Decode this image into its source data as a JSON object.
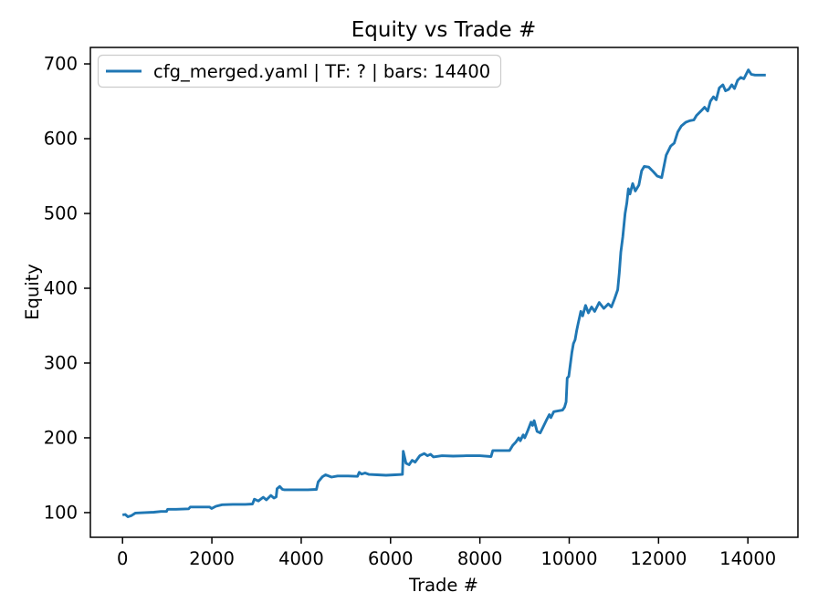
{
  "chart_data": {
    "type": "line",
    "title": "Equity vs Trade #",
    "xlabel": "Trade #",
    "ylabel": "Equity",
    "grid": false,
    "legend_position": "upper-left",
    "legend": [
      {
        "label": "cfg_merged.yaml | TF: ? | bars: 14400",
        "color": "#1f77b4"
      }
    ],
    "line_color": "#1f77b4",
    "axis_color": "#000000",
    "legend_border_color": "#cccccc",
    "background_color": "#ffffff",
    "xlim": [
      -720,
      15120
    ],
    "ylim": [
      67,
      722
    ],
    "xticks": [
      0,
      2000,
      4000,
      6000,
      8000,
      10000,
      12000,
      14000
    ],
    "yticks": [
      100,
      200,
      300,
      400,
      500,
      600,
      700
    ],
    "series": [
      {
        "name": "cfg_merged.yaml | TF: ? | bars: 14400",
        "x": [
          0,
          60,
          120,
          200,
          290,
          500,
          700,
          860,
          985,
          1010,
          1200,
          1480,
          1515,
          1800,
          1950,
          1995,
          2090,
          2230,
          2500,
          2750,
          2910,
          2950,
          3040,
          3150,
          3220,
          3320,
          3390,
          3440,
          3460,
          3520,
          3580,
          3625,
          3900,
          4150,
          4340,
          4380,
          4475,
          4545,
          4680,
          4815,
          5050,
          5260,
          5300,
          5350,
          5430,
          5520,
          5700,
          5900,
          6100,
          6265,
          6285,
          6345,
          6415,
          6485,
          6550,
          6655,
          6755,
          6825,
          6895,
          6960,
          7150,
          7400,
          7700,
          8000,
          8250,
          8290,
          8500,
          8665,
          8735,
          8800,
          8870,
          8905,
          8970,
          9005,
          9075,
          9145,
          9180,
          9215,
          9280,
          9350,
          9415,
          9485,
          9555,
          9590,
          9655,
          9750,
          9850,
          9895,
          9930,
          9955,
          9990,
          10025,
          10060,
          10095,
          10130,
          10165,
          10200,
          10260,
          10300,
          10365,
          10430,
          10500,
          10570,
          10670,
          10775,
          10875,
          10945,
          11015,
          11085,
          11120,
          11155,
          11200,
          11250,
          11290,
          11325,
          11360,
          11420,
          11480,
          11560,
          11620,
          11680,
          11780,
          11880,
          11970,
          12070,
          12170,
          12270,
          12350,
          12430,
          12510,
          12610,
          12700,
          12790,
          12850,
          12950,
          13030,
          13100,
          13160,
          13230,
          13290,
          13360,
          13440,
          13500,
          13570,
          13640,
          13700,
          13770,
          13840,
          13910,
          14010,
          14075,
          14160,
          14280,
          14400
        ],
        "y": [
          97,
          97.5,
          94.5,
          96,
          99.5,
          100,
          100.5,
          101.5,
          101.5,
          104.5,
          104.5,
          105,
          107.5,
          107.5,
          107.5,
          105.5,
          108.5,
          110.5,
          111,
          111,
          111.5,
          118,
          115.5,
          120.5,
          117,
          123,
          119.5,
          121,
          132,
          135,
          131,
          130.5,
          130.5,
          130.5,
          131,
          141,
          148,
          150.5,
          147.5,
          149,
          149,
          148.5,
          154,
          151.5,
          153,
          151,
          150.5,
          150,
          150.5,
          151,
          182,
          166,
          164,
          170,
          167.5,
          176,
          179,
          176,
          178,
          174.5,
          176,
          175.5,
          176,
          176,
          175,
          183,
          183,
          183,
          190,
          194,
          200,
          196,
          204,
          200,
          210,
          221,
          216.5,
          223,
          208.5,
          206.5,
          214.5,
          223,
          231,
          227,
          235,
          236,
          237,
          241,
          248,
          280,
          282,
          298,
          314,
          326,
          331,
          343,
          353,
          369,
          363,
          377,
          367,
          375,
          369,
          381,
          373,
          379,
          375,
          386,
          398,
          420,
          448,
          469,
          500,
          514,
          533,
          526,
          540,
          530,
          538,
          557,
          563,
          562,
          556,
          550,
          548,
          578,
          590,
          594,
          609,
          617,
          622,
          624,
          625,
          631,
          637,
          642,
          637,
          650,
          656,
          652,
          668,
          672,
          664,
          666,
          672,
          667,
          678,
          682,
          680,
          692,
          686,
          685,
          685,
          685
        ]
      }
    ]
  }
}
